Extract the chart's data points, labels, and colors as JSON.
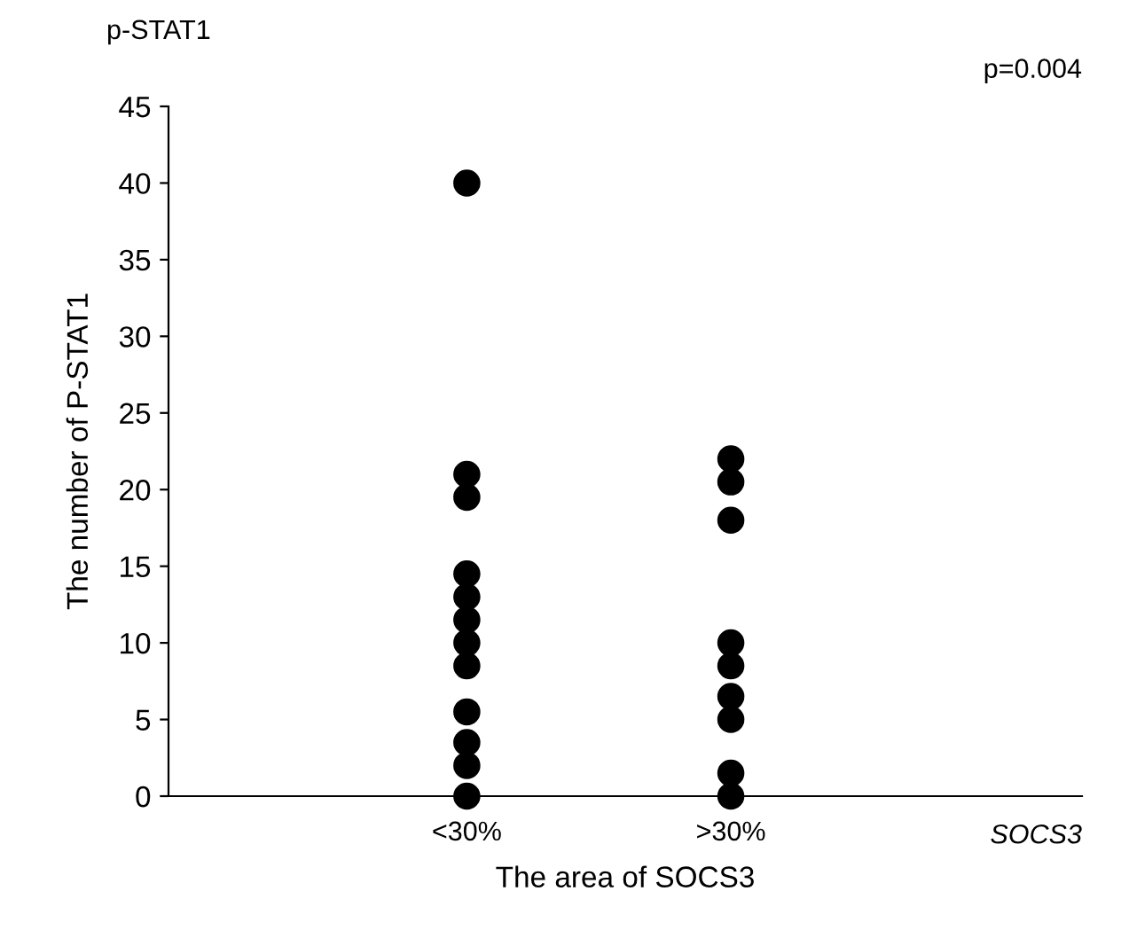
{
  "chart_data": {
    "type": "scatter",
    "title": "p-STAT1",
    "xlabel": "The area of SOCS3",
    "ylabel": "The number of P-STAT1",
    "categories": [
      "<30%",
      ">30%"
    ],
    "series": [
      {
        "color": "#000000",
        "x": [
          "<30%",
          "<30%",
          "<30%",
          "<30%",
          "<30%",
          "<30%",
          "<30%",
          "<30%",
          "<30%",
          "<30%",
          "<30%",
          "<30%"
        ],
        "values": [
          40,
          21,
          19.5,
          14.5,
          13,
          11.5,
          10,
          8.5,
          5.5,
          3.5,
          2,
          0
        ]
      },
      {
        "color": "#000000",
        "x": [
          ">30%",
          ">30%",
          ">30%",
          ">30%",
          ">30%",
          ">30%",
          ">30%",
          ">30%",
          ">30%"
        ],
        "values": [
          22,
          20.5,
          18,
          10,
          8.5,
          6.5,
          5,
          1.5,
          0
        ]
      }
    ],
    "ylim": [
      0,
      45
    ],
    "yticks": [
      0,
      5,
      10,
      15,
      20,
      25,
      30,
      35,
      40,
      45
    ],
    "marker": "circle",
    "grid": false,
    "legend": false,
    "annotations": [
      "p=0.004",
      "SOCS3"
    ]
  }
}
